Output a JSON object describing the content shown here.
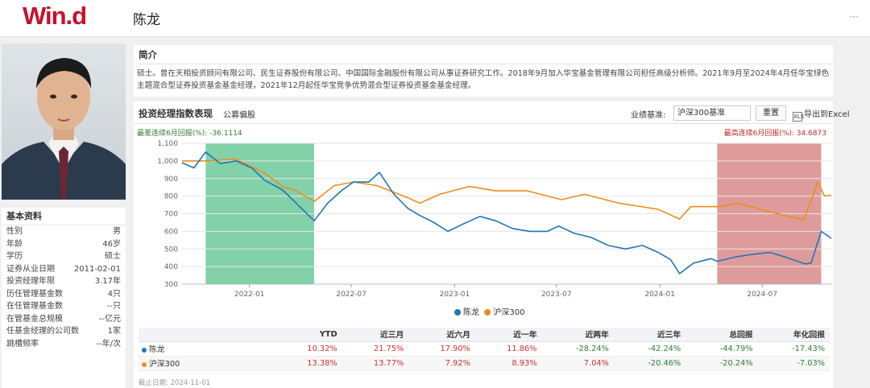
{
  "app": {
    "logo": "Win.d",
    "more": "···"
  },
  "manager": {
    "name": "陈龙",
    "basic_title": "基本资料",
    "info": [
      {
        "label": "性别",
        "value": "男"
      },
      {
        "label": "年龄",
        "value": "46岁"
      },
      {
        "label": "学历",
        "value": "硕士"
      },
      {
        "label": "证券从业日期",
        "value": "2011-02-01"
      },
      {
        "label": "投资经理年限",
        "value": "3.17年"
      },
      {
        "label": "历任管理基金数",
        "value": "4只"
      },
      {
        "label": "在任管理基金数",
        "value": "--只"
      },
      {
        "label": "在管基金总规模",
        "value": "--亿元"
      },
      {
        "label": "任基金经理的公司数",
        "value": "1家"
      },
      {
        "label": "跳槽频率",
        "value": "--年/次"
      }
    ]
  },
  "intro": {
    "title": "简介",
    "text": "硕士。曾在天相投资顾问有限公司、民生证券股份有限公司、中国国际金融股份有限公司从事证券研究工作。2018年9月加入华宝基金管理有限公司担任高级分析师。2021年9月至2024年4月任华宝绿色主题混合型证券投资基金基金经理，2021年12月起任华宝竞争优势混合型证券投资基金基金经理。"
  },
  "perf": {
    "title": "投资经理指数表现",
    "subtitle": "公募偏股",
    "bench_label": "业绩基准:",
    "bench_value": "沪深300基准",
    "reset": "重置",
    "export": "导出到Excel",
    "export_icon": "excel-icon",
    "worst_drawdown": "最差连续6月回报(%): -36.1114",
    "best_run": "最高连续6月回报(%): 34.6873",
    "colors": {
      "manager": "#1f77b4",
      "benchmark": "#ef8c1a",
      "best_zone": "#d98a8a",
      "worst_zone": "#6cc99a"
    }
  },
  "chart_data": {
    "type": "line",
    "ylim": [
      300,
      1100
    ],
    "yticks": [
      "300",
      "400",
      "500",
      "600",
      "700",
      "800",
      "900",
      "1,000",
      "1,100"
    ],
    "ytick_values": [
      300,
      400,
      500,
      600,
      700,
      800,
      900,
      1000,
      1100
    ],
    "xlim": [
      "2021-09-03",
      "2024-11-01"
    ],
    "xticks": [
      "2022-01",
      "2022-07",
      "2023-01",
      "2023-07",
      "2024-01",
      "2024-07"
    ],
    "xtick_dates": [
      "2022-01-01",
      "2022-07-01",
      "2023-01-01",
      "2023-07-01",
      "2024-01-01",
      "2024-07-01"
    ],
    "shaded": [
      {
        "kind": "worst",
        "from": "2021-10-15",
        "to": "2022-04-26"
      },
      {
        "kind": "best",
        "from": "2024-04-12",
        "to": "2024-10-14"
      }
    ],
    "series": [
      {
        "name": "陈龙",
        "x": [
          "2021-09-03",
          "2021-09-24",
          "2021-10-15",
          "2021-11-10",
          "2021-12-08",
          "2022-01-05",
          "2022-01-28",
          "2022-03-01",
          "2022-03-25",
          "2022-04-26",
          "2022-05-20",
          "2022-06-15",
          "2022-07-05",
          "2022-08-01",
          "2022-08-20",
          "2022-09-15",
          "2022-10-10",
          "2022-10-31",
          "2022-11-25",
          "2022-12-20",
          "2023-01-15",
          "2023-02-15",
          "2023-03-15",
          "2023-04-15",
          "2023-05-15",
          "2023-06-15",
          "2023-07-05",
          "2023-08-01",
          "2023-09-01",
          "2023-10-01",
          "2023-11-01",
          "2023-12-01",
          "2023-12-29",
          "2024-01-20",
          "2024-02-05",
          "2024-03-01",
          "2024-04-01",
          "2024-04-12",
          "2024-05-15",
          "2024-06-15",
          "2024-07-15",
          "2024-08-15",
          "2024-09-15",
          "2024-09-26",
          "2024-10-14",
          "2024-11-01"
        ],
        "values": [
          990,
          960,
          1050,
          985,
          1000,
          960,
          890,
          835,
          760,
          660,
          760,
          835,
          880,
          880,
          935,
          810,
          730,
          690,
          650,
          600,
          640,
          685,
          660,
          615,
          600,
          600,
          630,
          590,
          565,
          520,
          500,
          520,
          480,
          440,
          360,
          420,
          445,
          430,
          455,
          470,
          480,
          450,
          415,
          420,
          600,
          560
        ]
      },
      {
        "name": "沪深300",
        "x": [
          "2021-09-03",
          "2021-10-15",
          "2021-12-08",
          "2022-01-28",
          "2022-03-01",
          "2022-03-25",
          "2022-04-26",
          "2022-06-01",
          "2022-07-05",
          "2022-08-15",
          "2022-10-10",
          "2022-10-31",
          "2022-12-05",
          "2023-01-27",
          "2023-03-15",
          "2023-05-10",
          "2023-07-10",
          "2023-08-20",
          "2023-10-20",
          "2023-12-29",
          "2024-02-05",
          "2024-02-25",
          "2024-04-15",
          "2024-05-20",
          "2024-07-15",
          "2024-09-13",
          "2024-10-08",
          "2024-10-20",
          "2024-11-01"
        ],
        "values": [
          1000,
          1000,
          1010,
          930,
          855,
          830,
          770,
          860,
          880,
          860,
          790,
          760,
          810,
          855,
          830,
          830,
          780,
          810,
          760,
          725,
          670,
          740,
          740,
          760,
          710,
          665,
          880,
          800,
          805
        ]
      }
    ],
    "legend": "bottom"
  },
  "returns": {
    "headers": [
      "",
      "YTD",
      "近三月",
      "近六月",
      "近一年",
      "近两年",
      "近三年",
      "总回报",
      "年化回报"
    ],
    "rows": [
      {
        "name": "陈龙",
        "color": "#1f77b4",
        "values": [
          "10.32%",
          "21.75%",
          "17.90%",
          "11.86%",
          "-28.24%",
          "-42.24%",
          "-44.79%",
          "-17.43%"
        ]
      },
      {
        "name": "沪深300",
        "color": "#ef8c1a",
        "values": [
          "13.38%",
          "13.77%",
          "7.92%",
          "8.93%",
          "7.04%",
          "-20.46%",
          "-20.24%",
          "-7.03%"
        ]
      }
    ],
    "cutoff": "截止日期: 2024-11-01"
  }
}
